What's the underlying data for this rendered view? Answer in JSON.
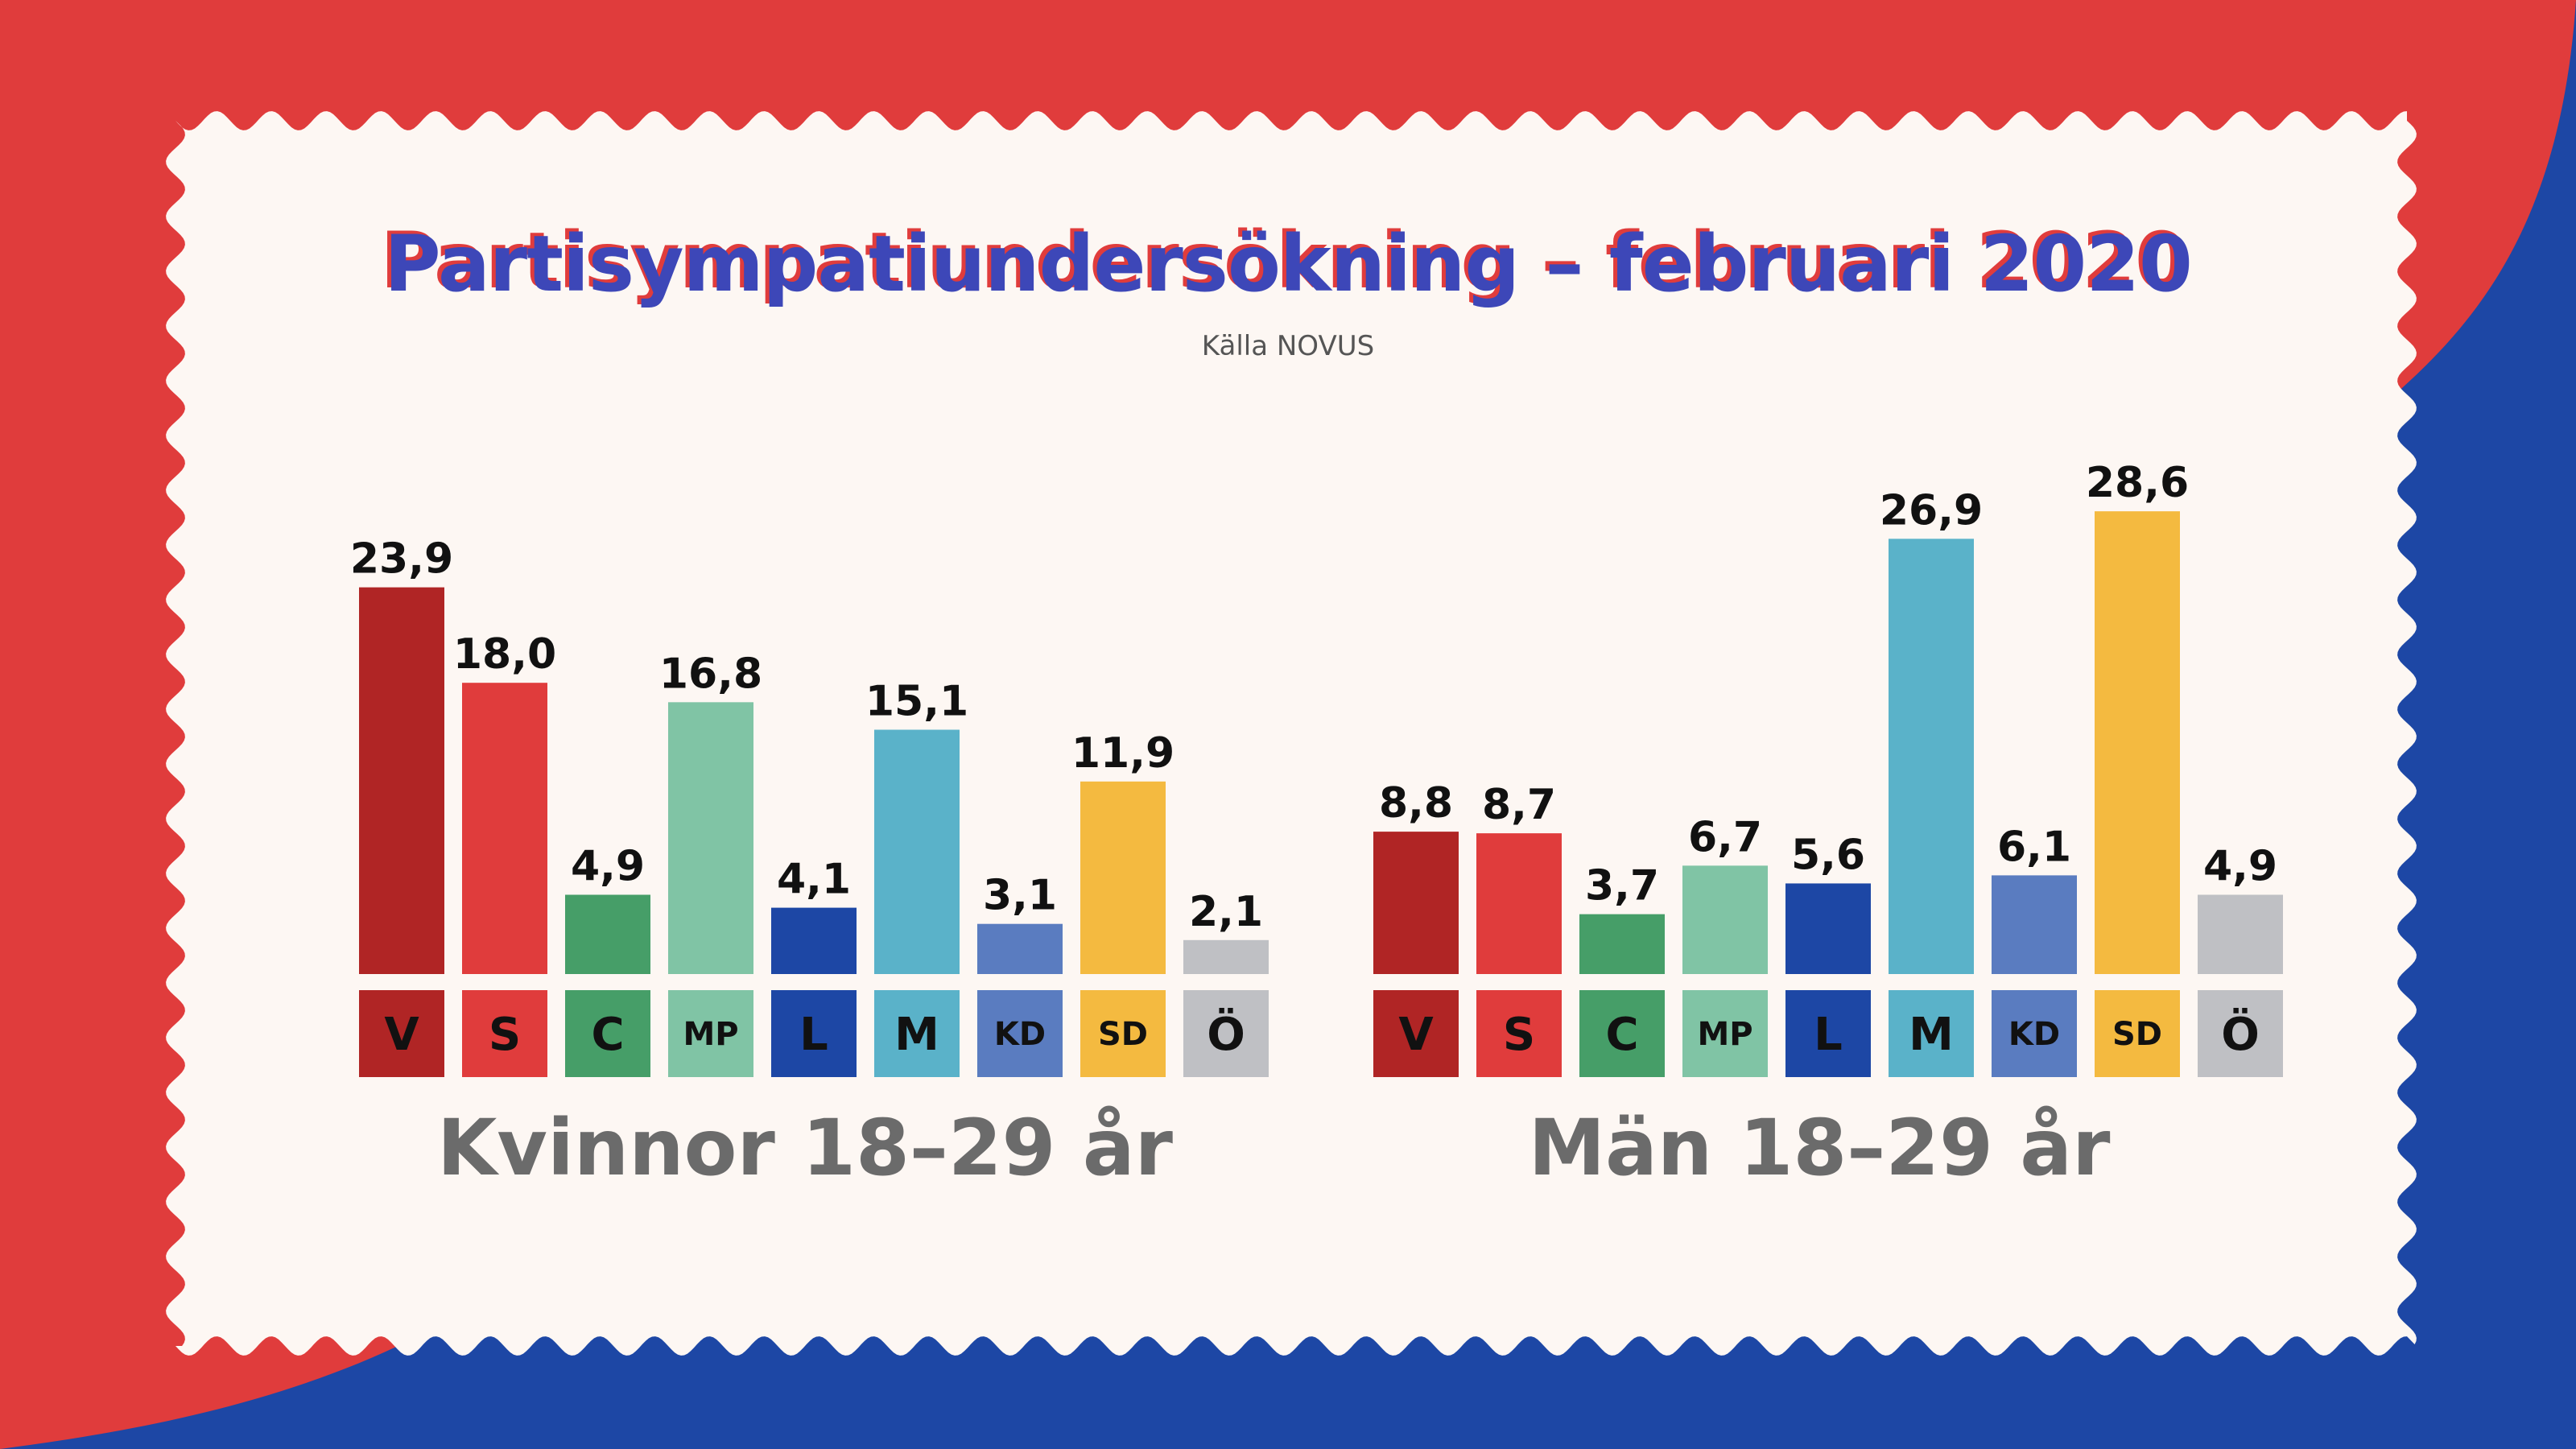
{
  "chart_data": {
    "type": "bar",
    "title": "Partisympatiundersökning – februari 2020",
    "subtitle": "Källa NOVUS",
    "categories": [
      "V",
      "S",
      "C",
      "MP",
      "L",
      "M",
      "KD",
      "SD",
      "Ö"
    ],
    "colors": [
      "#b02525",
      "#e03c3c",
      "#469e68",
      "#80c4a5",
      "#1d47a5",
      "#5ab2c9",
      "#5a7cc0",
      "#f4ba40",
      "#bfc0c4"
    ],
    "value_labels": {
      "kvinnor": [
        "23,9",
        "18,0",
        "4,9",
        "16,8",
        "4,1",
        "15,1",
        "3,1",
        "11,9",
        "2,1"
      ],
      "man": [
        "8,8",
        "8,7",
        "3,7",
        "6,7",
        "5,6",
        "26,9",
        "6,1",
        "28,6",
        "4,9"
      ]
    },
    "series": [
      {
        "name": "Kvinnor 18–29 år",
        "values": [
          23.9,
          18.0,
          4.9,
          16.8,
          4.1,
          15.1,
          3.1,
          11.9,
          2.1
        ]
      },
      {
        "name": "Män 18–29 år",
        "values": [
          8.8,
          8.7,
          3.7,
          6.7,
          5.6,
          26.9,
          6.1,
          28.6,
          4.9
        ]
      }
    ]
  },
  "colors": {
    "background_red": "#e03c3c",
    "background_blue": "#1d47a5",
    "card": "#fdf7f3",
    "title_blue": "#3d47b8",
    "title_shadow_red": "#e03c3c",
    "group_label": "#6b6b6b"
  }
}
